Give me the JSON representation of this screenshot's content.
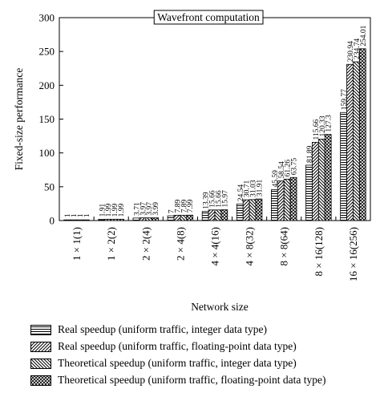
{
  "chart_data": {
    "type": "bar",
    "title": "Wavefront computation",
    "xlabel": "Network size",
    "ylabel": "Fixed-size performance",
    "ylim": [
      0,
      300
    ],
    "yticks": [
      0,
      50,
      100,
      150,
      200,
      250,
      300
    ],
    "categories": [
      "1 × 1(1)",
      "1 × 2(2)",
      "2 × 2(4)",
      "2 × 4(8)",
      "4 × 4(16)",
      "4 × 8(32)",
      "8 × 8(64)",
      "8 × 16(128)",
      "16 × 16(256)"
    ],
    "series": [
      {
        "name": "Real speedup (uniform traffic, integer data type)",
        "pattern": "horizontal-lines",
        "values": [
          1,
          1.91,
          3.71,
          7,
          13.39,
          24.54,
          45.59,
          81.89,
          159.77
        ],
        "labels": [
          "1",
          "1.91",
          "3.71",
          "7",
          "13.39",
          "24.54",
          "45.59",
          "81.89",
          "159.77"
        ]
      },
      {
        "name": "Real speedup (uniform traffic, floating-point data type)",
        "pattern": "diagonal-lines",
        "values": [
          1,
          1.99,
          3.97,
          7.89,
          15.66,
          30.71,
          58.54,
          115.66,
          230.94
        ],
        "labels": [
          "1",
          "1.99",
          "3.97",
          "7.89",
          "15.66",
          "30.71",
          "58.54",
          "115.66",
          "230.94"
        ]
      },
      {
        "name": "Theoretical speedup (uniform traffic, integer data type)",
        "pattern": "back-diagonal-lines",
        "values": [
          1,
          1.99,
          3.97,
          7.89,
          15.66,
          31.03,
          61.26,
          120.33,
          234.74
        ],
        "labels": [
          "1",
          "1.99",
          "3.97",
          "7.89",
          "15.66",
          "31.03",
          "61.26",
          "120.33",
          "234.74"
        ]
      },
      {
        "name": "Theoretical speedup (uniform traffic, floating-point data type)",
        "pattern": "crosshatch",
        "values": [
          1,
          1.99,
          3.99,
          7.99,
          15.97,
          31.91,
          63.75,
          127.3,
          254.01
        ],
        "labels": [
          "1",
          "1.99",
          "3.99",
          "7.99",
          "15.97",
          "31.91",
          "63.75",
          "127.3",
          "254.01"
        ]
      }
    ],
    "grid": false,
    "legend_position": "bottom"
  }
}
